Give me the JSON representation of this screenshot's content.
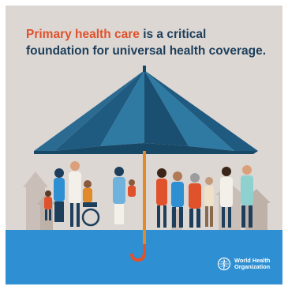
{
  "headline": {
    "accent": "Primary health care",
    "line1_rest": " is a critical",
    "line2": "foundation for universal health coverage."
  },
  "logo": {
    "icon": "who-emblem-icon",
    "line1": "World Health",
    "line2": "Organization"
  },
  "colors": {
    "background": "#ddd7d3",
    "accent": "#e0522c",
    "headline": "#1d3f5c",
    "umbrella": "#1f5a80",
    "water": "#2e8fd3",
    "handle": "#e28a2a"
  }
}
